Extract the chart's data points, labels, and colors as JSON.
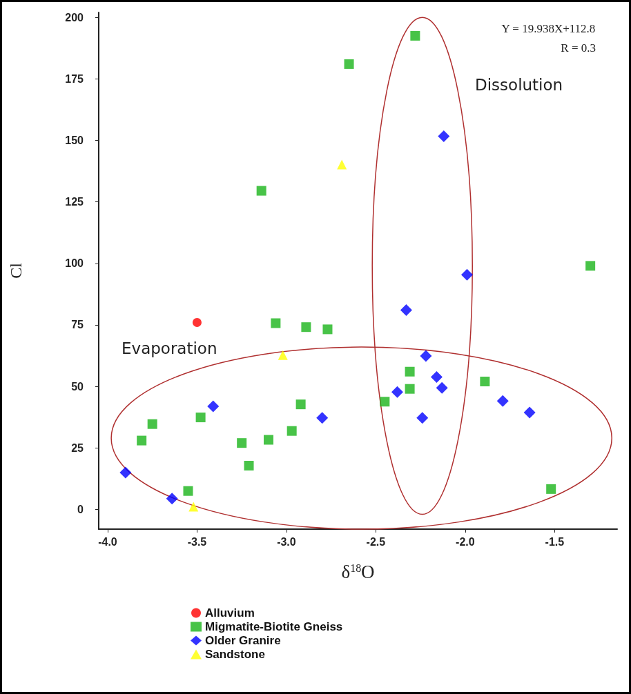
{
  "chart_data": {
    "type": "scatter",
    "xlabel": "δ$^{18}$O",
    "ylabel": "Cl",
    "xlim": [
      -4.05,
      -1.15
    ],
    "xticks": [
      {
        "value": -4,
        "label": "-4.0"
      },
      -3.5,
      {
        "value": -3,
        "label": "-3.0"
      },
      -2.5,
      {
        "value": -2,
        "label": "-2.0"
      },
      -1.5
    ],
    "ylim": [
      -8,
      202
    ],
    "yticks": [
      0,
      25,
      50,
      75,
      100,
      125,
      150,
      175,
      200
    ],
    "grid": false,
    "legend": "bottom",
    "annotations": [
      "Y = 19.938X+112.8",
      "R = 0.3",
      "Evaporation",
      "Dissolution"
    ],
    "series": [
      {
        "name": "Alluvium",
        "color": "#ff0000",
        "marker": "circle",
        "x": [
          -3.5
        ],
        "values": [
          76
        ]
      },
      {
        "name": "Migmatite-Biotite Gneiss",
        "color": "#1ab41a",
        "marker": "square",
        "x": [
          -2.28,
          -2.65,
          -3.14,
          -1.3,
          -3.06,
          -2.89,
          -2.77,
          -2.31,
          -2.31,
          -1.89,
          -2.45,
          -2.92,
          -3.48,
          -3.75,
          -3.81,
          -3.25,
          -3.1,
          -2.97,
          -3.21,
          -3.55,
          -1.52
        ],
        "values": [
          192.5,
          181,
          129.5,
          99,
          75.7,
          74.1,
          73.2,
          56,
          49,
          52,
          43.8,
          42.7,
          37.4,
          34.7,
          28,
          27,
          28.3,
          31.9,
          17.8,
          7.5,
          8.3
        ]
      },
      {
        "name": "Older Granire",
        "color": "#0000ff",
        "marker": "diamond",
        "x": [
          -2.12,
          -1.99,
          -2.33,
          -2.22,
          -2.16,
          -2.13,
          -2.38,
          -2.24,
          -1.79,
          -1.64,
          -3.41,
          -2.8,
          -3.9,
          -3.64
        ],
        "values": [
          151.7,
          95.4,
          81,
          62.4,
          53.8,
          49.4,
          47.7,
          37.2,
          44.1,
          39.4,
          41.9,
          37.2,
          15,
          4.4
        ]
      },
      {
        "name": "Sandstone",
        "color": "#ffff00",
        "marker": "triangle",
        "x": [
          -2.69,
          -3.02,
          -3.52
        ],
        "values": [
          140.2,
          62.7,
          1.1
        ]
      }
    ]
  }
}
